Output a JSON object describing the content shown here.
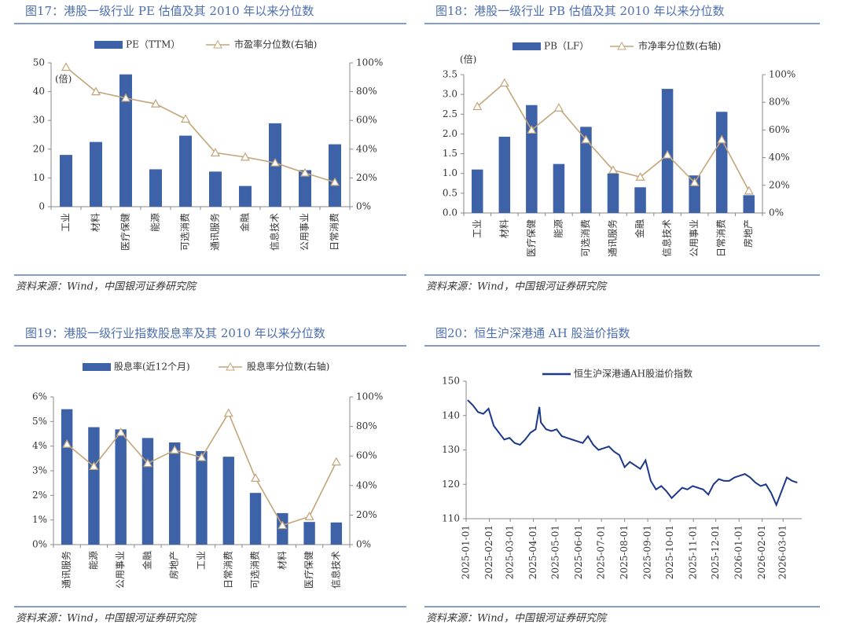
{
  "chart_data": [
    {
      "type": "combo",
      "title": "图17：港股一级行业 PE 估值及其 2010 年以来分位数",
      "source": "资料来源：Wind，中国银河证券研究院",
      "y_label": "(倍)",
      "categories": [
        "工业",
        "材料",
        "医疗保健",
        "能源",
        "可选消费",
        "通讯服务",
        "金融",
        "信息技术",
        "公用事业",
        "日常消费"
      ],
      "series": [
        {
          "name": "PE（TTM）",
          "type": "bar",
          "color": "#3d62a7",
          "values": [
            18,
            22.5,
            46,
            13,
            24.7,
            12.2,
            7.2,
            29,
            12.7,
            21.7
          ]
        },
        {
          "name": "市盈率分位数(右轴)",
          "type": "line",
          "axis": "y2",
          "color": "#c4a57a",
          "values": [
            97,
            80,
            75.5,
            71.5,
            61,
            37.5,
            34.5,
            30.5,
            23.5,
            17
          ]
        }
      ],
      "ylim": [
        0,
        50
      ],
      "yticks": [
        0,
        10,
        20,
        30,
        40,
        50
      ],
      "y2lim": [
        0,
        100
      ],
      "y2ticks": [
        {
          "value": 0,
          "label": "0%"
        },
        {
          "value": 20,
          "label": "20%"
        },
        {
          "value": 40,
          "label": "40%"
        },
        {
          "value": 60,
          "label": "60%"
        },
        {
          "value": 80,
          "label": "80%"
        },
        {
          "value": 100,
          "label": "100%"
        }
      ]
    },
    {
      "type": "combo",
      "title": "图18：港股一级行业 PB 估值及其 2010 年以来分位数",
      "source": "资料来源：Wind，中国银河证券研究院",
      "y_label": "(倍)",
      "categories": [
        "工业",
        "材料",
        "医疗保健",
        "能源",
        "可选消费",
        "通讯服务",
        "金融",
        "信息技术",
        "公用事业",
        "日常消费",
        "房地产"
      ],
      "series": [
        {
          "name": "PB（LF）",
          "type": "bar",
          "color": "#3d62a7",
          "values": [
            1.1,
            1.93,
            2.73,
            1.24,
            2.18,
            1.0,
            0.65,
            3.14,
            0.95,
            2.56,
            0.45
          ]
        },
        {
          "name": "市净率分位数(右轴)",
          "type": "line",
          "axis": "y2",
          "color": "#c4a57a",
          "values": [
            77,
            94,
            60,
            76,
            53,
            31,
            26,
            42,
            22,
            53,
            16
          ]
        }
      ],
      "ylim": [
        0,
        3.5
      ],
      "yticks": [
        {
          "value": 0,
          "label": "0.0"
        },
        0.5,
        {
          "value": 1,
          "label": "1.0"
        },
        1.5,
        {
          "value": 2,
          "label": "2.0"
        },
        2.5,
        {
          "value": 3,
          "label": "3.0"
        },
        3.5
      ],
      "y2lim": [
        0,
        100
      ],
      "y2ticks": [
        {
          "value": 0,
          "label": "0%"
        },
        {
          "value": 20,
          "label": "20%"
        },
        {
          "value": 40,
          "label": "40%"
        },
        {
          "value": 60,
          "label": "60%"
        },
        {
          "value": 80,
          "label": "80%"
        },
        {
          "value": 100,
          "label": "100%"
        }
      ]
    },
    {
      "type": "combo",
      "title": "图19：港股一级行业指数股息率及其 2010 年以来分位数",
      "source": "资料来源：Wind，中国银河证券研究院",
      "categories": [
        "通讯服务",
        "能源",
        "公用事业",
        "金融",
        "房地产",
        "工业",
        "日常消费",
        "可选消费",
        "材料",
        "医疗保健",
        "信息技术"
      ],
      "series": [
        {
          "name": "股息率(近12个月)",
          "type": "bar",
          "color": "#3d62a7",
          "values": [
            5.5,
            4.77,
            4.68,
            4.33,
            4.15,
            3.8,
            3.57,
            2.1,
            1.28,
            0.92,
            0.9
          ]
        },
        {
          "name": "股息率分位数(右轴)",
          "type": "line",
          "axis": "y2",
          "color": "#c4a57a",
          "values": [
            68,
            53,
            76,
            55,
            64,
            59,
            89,
            45,
            13,
            19,
            56
          ]
        }
      ],
      "ylim": [
        0,
        6
      ],
      "yticks": [
        {
          "value": 0,
          "label": "0%"
        },
        {
          "value": 1,
          "label": "1%"
        },
        {
          "value": 2,
          "label": "2%"
        },
        {
          "value": 3,
          "label": "3%"
        },
        {
          "value": 4,
          "label": "4%"
        },
        {
          "value": 5,
          "label": "5%"
        },
        {
          "value": 6,
          "label": "6%"
        }
      ],
      "y2lim": [
        0,
        100
      ],
      "y2ticks": [
        {
          "value": 0,
          "label": "0%"
        },
        {
          "value": 20,
          "label": "20%"
        },
        {
          "value": 40,
          "label": "40%"
        },
        {
          "value": 60,
          "label": "60%"
        },
        {
          "value": 80,
          "label": "80%"
        },
        {
          "value": 100,
          "label": "100%"
        }
      ]
    },
    {
      "type": "line",
      "title": "图20：恒生沪深港通 AH 股溢价指数",
      "source": "资料来源：Wind，中国银河证券研究院",
      "x": [
        "2025-01-03",
        "2025-01-10",
        "2025-01-17",
        "2025-01-24",
        "2025-01-31",
        "2025-02-07",
        "2025-02-14",
        "2025-02-21",
        "2025-02-28",
        "2025-03-07",
        "2025-03-14",
        "2025-03-21",
        "2025-03-28",
        "2025-04-04",
        "2025-04-09",
        "2025-04-11",
        "2025-04-18",
        "2025-04-25",
        "2025-05-02",
        "2025-05-09",
        "2025-05-16",
        "2025-05-23",
        "2025-05-30",
        "2025-06-06",
        "2025-06-13",
        "2025-06-20",
        "2025-06-27",
        "2025-07-04",
        "2025-07-11",
        "2025-07-18",
        "2025-07-25",
        "2025-08-01",
        "2025-08-08",
        "2025-08-15",
        "2025-08-22",
        "2025-08-29",
        "2025-09-05",
        "2025-09-12",
        "2025-09-19",
        "2025-09-26",
        "2025-10-03",
        "2025-10-10",
        "2025-10-17",
        "2025-10-24",
        "2025-10-31",
        "2025-11-07",
        "2025-11-14",
        "2025-11-21",
        "2025-11-28",
        "2025-12-05",
        "2025-12-12",
        "2025-12-19",
        "2025-12-26",
        "2026-01-02",
        "2026-01-09",
        "2026-01-16",
        "2026-01-23",
        "2026-01-30",
        "2026-02-06",
        "2026-02-13",
        "2026-02-20",
        "2026-02-27",
        "2026-03-06",
        "2026-03-13",
        "2026-03-20"
      ],
      "series": [
        {
          "name": "恒生沪深港通AH股溢价指数",
          "color": "#1c3889",
          "values": [
            144.5,
            143,
            141,
            140.5,
            142,
            137,
            135,
            133,
            133.5,
            132,
            131.5,
            133,
            135,
            136,
            142.5,
            138,
            136,
            135.5,
            136,
            134,
            133.5,
            133,
            132.5,
            132,
            134,
            131.5,
            130,
            130.5,
            131,
            129.5,
            128.5,
            125,
            126.5,
            125.5,
            124.5,
            127,
            121,
            118.5,
            119.5,
            118,
            116,
            117.5,
            119,
            118.5,
            119.5,
            119,
            118.5,
            117,
            120,
            121.5,
            121,
            121,
            122,
            122.5,
            123,
            122,
            120.5,
            119.5,
            120,
            117.5,
            114,
            118,
            122,
            121,
            120.5
          ]
        }
      ],
      "xlim": [
        "2025-01-01",
        "2026-03-26"
      ],
      "xticks": [
        "2025-01-01",
        "2025-02-01",
        "2025-03-01",
        "2025-04-01",
        "2025-05-01",
        "2025-06-01",
        "2025-07-01",
        "2025-08-01",
        "2025-09-01",
        "2025-10-01",
        "2025-11-01",
        "2025-12-01",
        "2026-01-01",
        "2026-02-01",
        "2026-03-01"
      ],
      "ylim": [
        110,
        150
      ],
      "yticks": [
        110,
        120,
        130,
        140,
        150
      ]
    }
  ]
}
